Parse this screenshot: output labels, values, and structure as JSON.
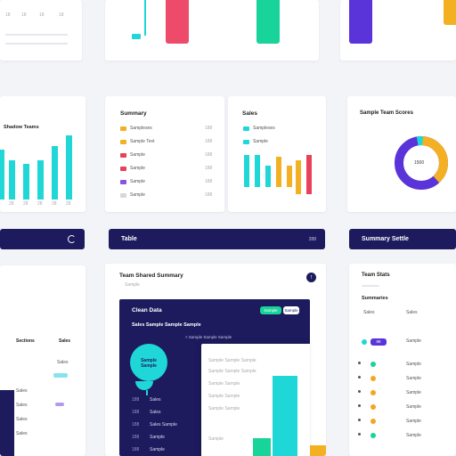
{
  "colors": {
    "navy": "#1d1b5e",
    "teal": "#1fd7d7",
    "coral": "#ee4b6a",
    "green": "#18d39a",
    "purple": "#5a34d8",
    "amber": "#f4b023",
    "red": "#e8425a",
    "violet": "#8a52e0"
  },
  "top_cards": {
    "col_labels": [
      "18",
      "18",
      "18",
      "18"
    ]
  },
  "teal_bar_card": {
    "title": "Shadow Teams",
    "axis_labels": [
      "28",
      "28",
      "28",
      "28",
      "28",
      "28",
      "28"
    ]
  },
  "legend_card": {
    "title": "Summary",
    "items": [
      {
        "label": "Sampleses",
        "value": "188"
      },
      {
        "label": "Sample Text",
        "value": "188"
      },
      {
        "label": "Sample",
        "value": "188"
      },
      {
        "label": "Sample",
        "value": "188"
      },
      {
        "label": "Sample",
        "value": "188"
      },
      {
        "label": "Sample",
        "value": "188"
      }
    ]
  },
  "mini_chart_card": {
    "title": "Sales",
    "legend": [
      "Sampleses",
      "Sample"
    ]
  },
  "donut_card": {
    "title": "Sample Team Scores",
    "center_label": "1500"
  },
  "navbars": {
    "left_icon": "refresh-icon",
    "middle_label": "Table",
    "middle_right": "288",
    "right_label": "Summary Settle"
  },
  "left_bottom_card": {
    "headers": [
      "Sections",
      "Sales"
    ],
    "values": [
      "Sales",
      "Sales",
      "Sales",
      "Sales",
      "Sales"
    ]
  },
  "center_panel": {
    "title": "Team Shared Summary",
    "subtitle": "Sample",
    "dark_title": "Clean Data",
    "badge_green": "Sample",
    "badge_white": "Sample",
    "subheader": "Sales Sample Sample Sample",
    "bubble_text": "Sample Sample",
    "list_items": [
      "Sales",
      "Sales",
      "Sales Sample",
      "Sample",
      "Sample"
    ],
    "list_values": [
      "188",
      "188",
      "188",
      "188",
      "188"
    ],
    "overlay_breadcrumb": "< Sample Sample Sample",
    "overlay_lines": [
      "Sample Sample Sample",
      "Sample Sample Sample",
      "Sample Sample",
      "Sample Sample",
      "Sample Sample",
      "Sample"
    ]
  },
  "right_bottom_card": {
    "title": "Team Stats",
    "section": "Summaries",
    "col_a": "Sales",
    "col_b": "Sales",
    "rows": [
      "Sample",
      "Sample",
      "Sample",
      "Sample",
      "Sample",
      "Sample",
      "Sample"
    ],
    "badge": "88"
  }
}
